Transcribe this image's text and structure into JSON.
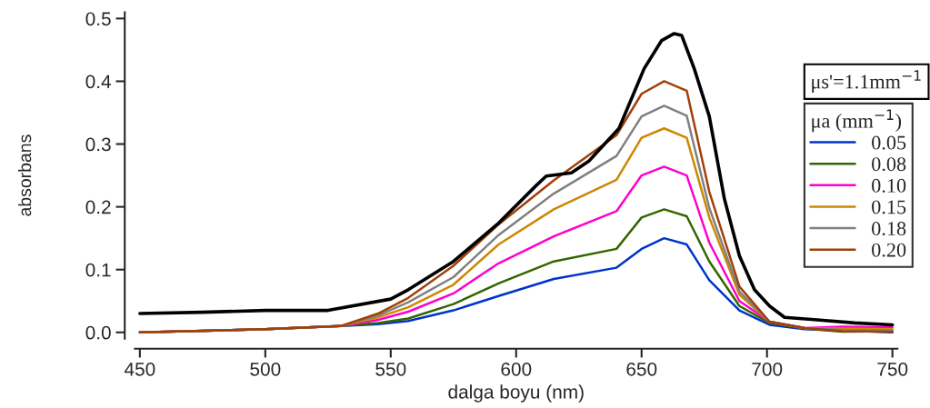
{
  "chart_data": {
    "type": "line",
    "xlabel": "dalga boyu (nm)",
    "ylabel": "absorbans",
    "legend_title": "μa (mm$^{−1}$)",
    "annotations": [
      "μs'=1.1mm$^{−1}$"
    ],
    "xlim": [
      448,
      752
    ],
    "ylim": [
      -0.01,
      0.51
    ],
    "xticks": [
      450,
      500,
      550,
      600,
      650,
      700,
      750
    ],
    "yticks": [
      {
        "value": 0,
        "label": "0.0"
      },
      {
        "value": 0.1,
        "label": "0.1"
      },
      {
        "value": 0.2,
        "label": "0.2"
      },
      {
        "value": 0.3,
        "label": "0.3"
      },
      {
        "value": 0.4,
        "label": "0.4"
      },
      {
        "value": 0.5,
        "label": "0.5"
      }
    ],
    "grid": false,
    "legend": "right",
    "marker": "none",
    "line_style": "solid",
    "series": [
      {
        "name": "0.05",
        "color": "#0033cc",
        "x": [
          450,
          500,
          530,
          545,
          557,
          575,
          593,
          615,
          640,
          650,
          659,
          668,
          677,
          689,
          701,
          715,
          730,
          750
        ],
        "values": [
          0,
          0.005,
          0.01,
          0.013,
          0.018,
          0.035,
          0.058,
          0.085,
          0.103,
          0.133,
          0.15,
          0.14,
          0.083,
          0.035,
          0.012,
          0.005,
          0.003,
          0.0
        ]
      },
      {
        "name": "0.08",
        "color": "#336600",
        "x": [
          450,
          500,
          530,
          545,
          557,
          575,
          593,
          615,
          640,
          650,
          659,
          668,
          677,
          689,
          701,
          715,
          730,
          750
        ],
        "values": [
          0,
          0.005,
          0.01,
          0.015,
          0.022,
          0.045,
          0.078,
          0.113,
          0.133,
          0.183,
          0.196,
          0.185,
          0.113,
          0.042,
          0.015,
          0.006,
          0.001,
          0.002
        ]
      },
      {
        "name": "0.10",
        "color": "#ff00cc",
        "x": [
          450,
          500,
          530,
          545,
          557,
          575,
          593,
          615,
          640,
          650,
          659,
          668,
          677,
          689,
          701,
          715,
          730,
          750
        ],
        "values": [
          0,
          0.005,
          0.01,
          0.02,
          0.033,
          0.062,
          0.11,
          0.153,
          0.193,
          0.25,
          0.264,
          0.25,
          0.143,
          0.05,
          0.017,
          0.007,
          0.009,
          0.008
        ]
      },
      {
        "name": "0.15",
        "color": "#cc8800",
        "x": [
          450,
          500,
          530,
          545,
          557,
          575,
          593,
          615,
          640,
          650,
          659,
          668,
          677,
          689,
          701,
          715,
          730,
          750
        ],
        "values": [
          0,
          0.005,
          0.01,
          0.024,
          0.04,
          0.076,
          0.14,
          0.196,
          0.243,
          0.31,
          0.325,
          0.31,
          0.183,
          0.06,
          0.017,
          0.007,
          0.006,
          0.005
        ]
      },
      {
        "name": "0.18",
        "color": "#808080",
        "x": [
          450,
          500,
          530,
          545,
          557,
          575,
          593,
          615,
          640,
          650,
          659,
          668,
          677,
          689,
          701,
          715,
          730,
          750
        ],
        "values": [
          0,
          0.005,
          0.01,
          0.027,
          0.048,
          0.088,
          0.155,
          0.221,
          0.281,
          0.344,
          0.361,
          0.345,
          0.198,
          0.065,
          0.017,
          0.007,
          0.004,
          0.003
        ]
      },
      {
        "name": "0.20",
        "color": "#a0400a",
        "x": [
          450,
          500,
          530,
          545,
          557,
          575,
          593,
          615,
          640,
          650,
          659,
          668,
          677,
          689,
          701,
          715,
          730,
          750
        ],
        "values": [
          0,
          0.005,
          0.01,
          0.03,
          0.055,
          0.106,
          0.172,
          0.242,
          0.314,
          0.38,
          0.4,
          0.385,
          0.224,
          0.073,
          0.017,
          0.007,
          0.002,
          0.001
        ]
      },
      {
        "color": "#000000",
        "x": [
          450,
          475,
          500,
          525,
          550,
          557,
          575,
          593,
          608,
          612,
          622,
          629,
          641,
          651,
          658,
          663,
          666,
          671,
          677,
          683,
          689,
          695,
          701,
          707,
          720,
          735,
          750
        ],
        "values": [
          0.03,
          0.032,
          0.035,
          0.035,
          0.053,
          0.068,
          0.113,
          0.174,
          0.234,
          0.249,
          0.254,
          0.273,
          0.325,
          0.42,
          0.465,
          0.476,
          0.473,
          0.42,
          0.344,
          0.213,
          0.122,
          0.068,
          0.042,
          0.024,
          0.02,
          0.015,
          0.012
        ]
      }
    ]
  }
}
